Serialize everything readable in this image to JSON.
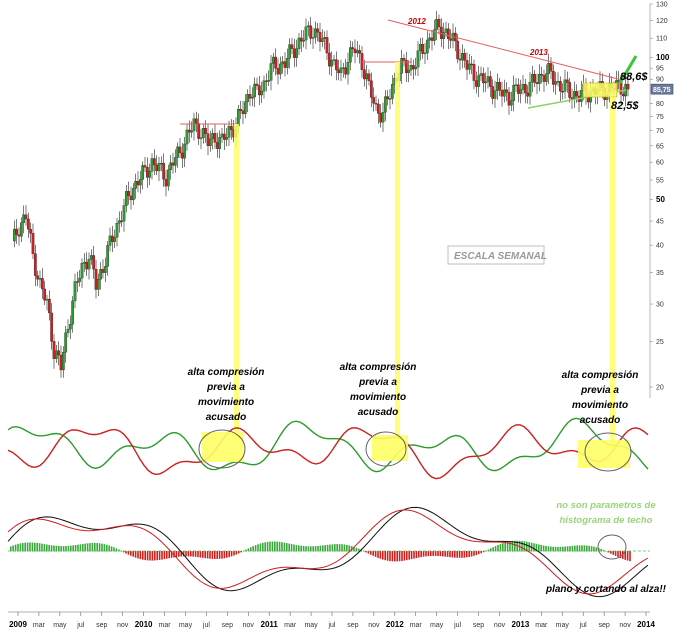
{
  "chart_data": {
    "type": "candlestick",
    "title": "",
    "scale": "log",
    "watermark": "ESCALA SEMANAL",
    "price_axis_ticks": [
      "130",
      "120",
      "110",
      "100",
      "95",
      "90",
      "85",
      "80",
      "75",
      "70",
      "65",
      "60",
      "55",
      "50",
      "45",
      "40",
      "35",
      "30",
      "25",
      "20"
    ],
    "last_price_label": "85,75",
    "x_ticks": [
      "2009",
      "mar",
      "may",
      "jul",
      "sep",
      "nov",
      "2010",
      "mar",
      "may",
      "jul",
      "sep",
      "nov",
      "2011",
      "mar",
      "may",
      "jul",
      "sep",
      "nov",
      "2012",
      "mar",
      "may",
      "jul",
      "sep",
      "nov",
      "2013",
      "mar",
      "may",
      "jul",
      "sep",
      "nov",
      "2014"
    ],
    "series": [
      {
        "name": "price",
        "values": [
          40,
          44,
          46,
          38,
          33,
          30,
          24,
          22,
          27,
          32,
          36,
          38,
          33,
          36,
          40,
          44,
          48,
          52,
          55,
          57,
          60,
          58,
          56,
          60,
          63,
          68,
          72,
          70,
          66,
          68,
          66,
          70,
          72,
          78,
          85,
          84,
          88,
          95,
          96,
          98,
          103,
          108,
          112,
          115,
          110,
          104,
          96,
          92,
          100,
          104,
          98,
          86,
          78,
          76,
          84,
          93,
          96,
          95,
          100,
          106,
          112,
          116,
          113,
          108,
          102,
          96,
          92,
          90,
          88,
          86,
          84,
          83,
          85,
          86,
          87,
          90,
          93,
          92,
          88,
          86,
          84,
          83,
          84,
          85,
          85,
          86,
          86.5,
          87,
          85.75
        ]
      }
    ],
    "year_labels": [
      "2012",
      "2013"
    ],
    "target_labels": [
      "88,6$",
      "82,5$"
    ],
    "annotations": [
      "alta compresión previa a movimiento acusado",
      "alta compresión previa a movimiento acusado",
      "alta compresión previa a movimiento acusado"
    ],
    "note_top": "no son parametros de histograma de techo",
    "note_bottom": "plano y cortando al alza!!",
    "colors": {
      "up": "#2d9a2d",
      "down": "#cc1f1f",
      "trend": "#e06060",
      "support": "#8fd06a",
      "highlight": "#ffff66",
      "macd_line": "#000000",
      "signal_line": "#cc0000"
    }
  }
}
